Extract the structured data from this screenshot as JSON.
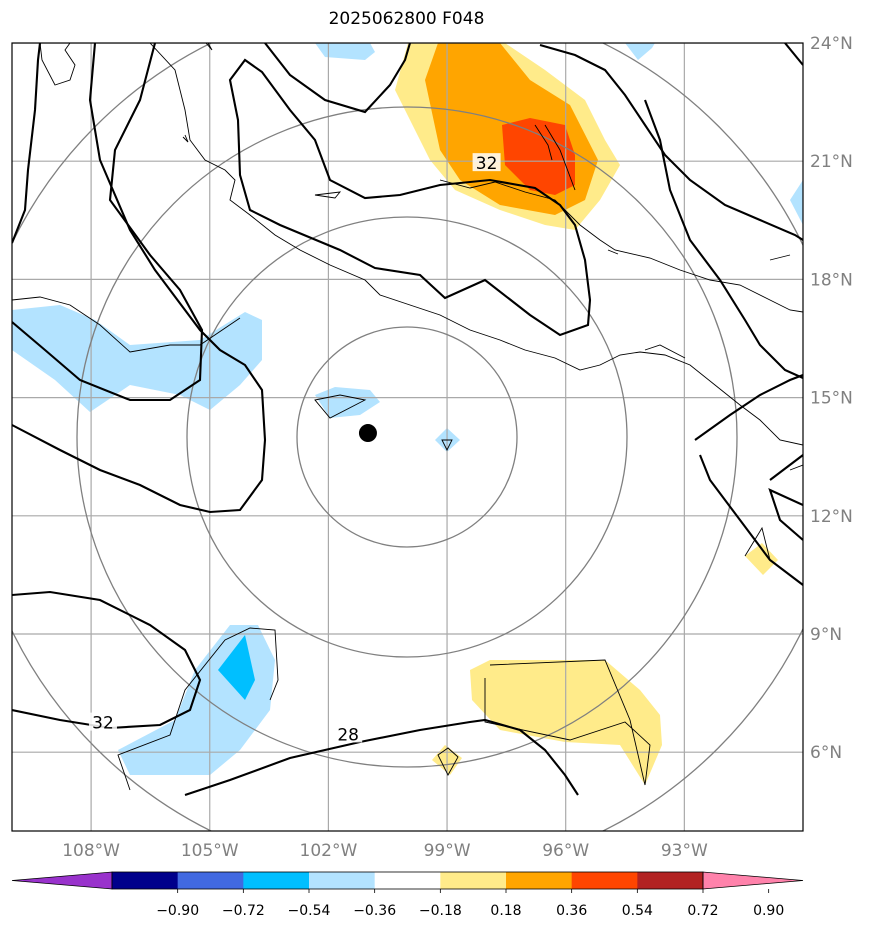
{
  "title": "2025062800 F048",
  "map": {
    "lat_range": [
      4,
      24
    ],
    "lon_range": [
      -110,
      -90
    ],
    "lat_ticks": [
      {
        "value": 24,
        "label": "24°N"
      },
      {
        "value": 21,
        "label": "21°N"
      },
      {
        "value": 18,
        "label": "18°N"
      },
      {
        "value": 15,
        "label": "15°N"
      },
      {
        "value": 12,
        "label": "12°N"
      },
      {
        "value": 9,
        "label": "9°N"
      },
      {
        "value": 6,
        "label": "6°N"
      }
    ],
    "lon_ticks": [
      {
        "value": -108,
        "label": "108°W"
      },
      {
        "value": -105,
        "label": "105°W"
      },
      {
        "value": -102,
        "label": "102°W"
      },
      {
        "value": -99,
        "label": "99°W"
      },
      {
        "value": -96,
        "label": "96°W"
      },
      {
        "value": -93,
        "label": "93°W"
      }
    ],
    "center_point": {
      "lat": 14.1,
      "lon": -101
    },
    "contour_labels": [
      {
        "text": "32",
        "lat": 20.9,
        "lon": -98
      },
      {
        "text": "32",
        "lat": 6.7,
        "lon": -107.7
      },
      {
        "text": "28",
        "lat": 6.4,
        "lon": -101.5
      }
    ]
  },
  "colorbar": {
    "colors": [
      "#9932cc",
      "#00008b",
      "#4169e1",
      "#00bfff",
      "#b3e3ff",
      "#ffffff",
      "#ffeb8a",
      "#ffa500",
      "#ff4500",
      "#b22222",
      "#ff82ab"
    ],
    "tick_labels": [
      "−0.90",
      "−0.72",
      "−0.54",
      "−0.36",
      "−0.18",
      "0.18",
      "0.36",
      "0.54",
      "0.72",
      "0.90"
    ]
  }
}
